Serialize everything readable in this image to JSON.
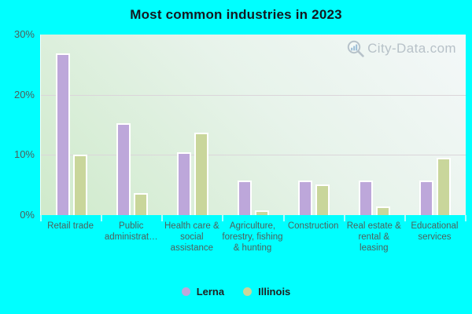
{
  "title": "Most common industries in 2023",
  "watermark": "City-Data.com",
  "colors": {
    "background": "#00ffff",
    "lerna_bar": "#bda7da",
    "illinois_bar": "#c9d69b",
    "bar_border": "#ffffff",
    "plot_gradient_light": "#f4f8f9",
    "plot_gradient_green": "#cfeacb",
    "gridline": "#dbd5da",
    "title_text": "#14181f",
    "axis_text": "#4c605c",
    "legend_text": "#1f1f1f",
    "watermark_text": "#a9b4bd"
  },
  "chart_data": {
    "type": "bar",
    "title": "Most common industries in 2023",
    "categories": [
      "Retail trade",
      "Public administrat…",
      "Health care & social assistance",
      "Agriculture, forestry, fishing & hunting",
      "Construction",
      "Real estate & rental & leasing",
      "Educational services"
    ],
    "series": [
      {
        "name": "Lerna",
        "color": "#bda7da",
        "values": [
          26.9,
          15.3,
          10.4,
          5.7,
          5.7,
          5.7,
          5.7
        ]
      },
      {
        "name": "Illinois",
        "color": "#c9d69b",
        "values": [
          10.0,
          3.7,
          13.7,
          0.8,
          5.1,
          1.4,
          9.5
        ]
      }
    ],
    "xlabel": "",
    "ylabel": "",
    "ylim": [
      0,
      30
    ],
    "yticks": {
      "values": [
        0,
        10,
        20,
        30
      ],
      "labels": [
        "0%",
        "10%",
        "20%",
        "30%"
      ]
    },
    "grid": true,
    "legend_position": "bottom"
  },
  "legend": {
    "items": [
      {
        "label": "Lerna",
        "color": "#bda7da"
      },
      {
        "label": "Illinois",
        "color": "#c9d69b"
      }
    ]
  }
}
